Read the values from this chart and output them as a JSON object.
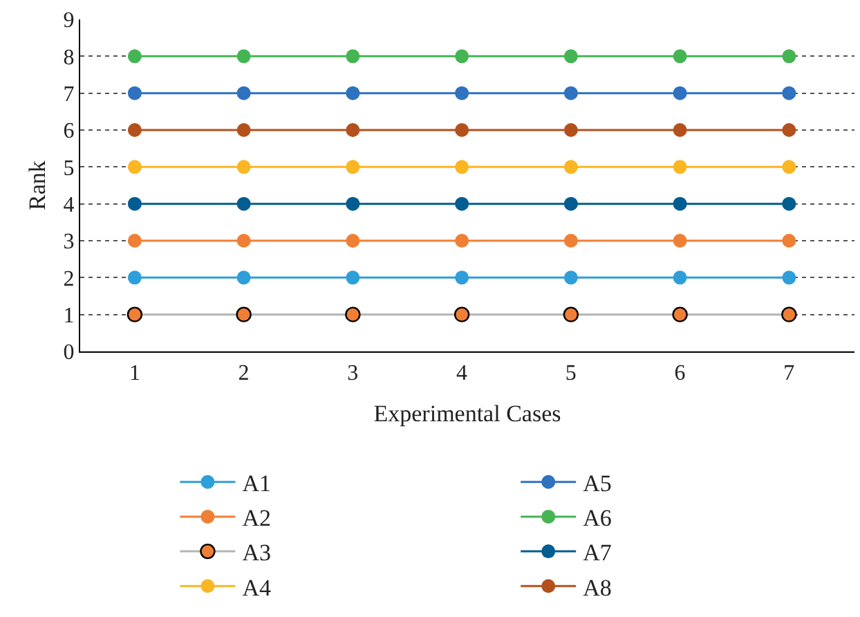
{
  "chart_data": {
    "type": "line",
    "xlabel": "Experimental Cases",
    "ylabel": "Rank",
    "x": [
      1,
      2,
      3,
      4,
      5,
      6,
      7
    ],
    "xlim": [
      0.5,
      7.6
    ],
    "xticks": [
      1,
      2,
      3,
      4,
      5,
      6,
      7
    ],
    "ylim": [
      0,
      9
    ],
    "yticks": [
      0,
      1,
      2,
      3,
      4,
      5,
      6,
      7,
      8,
      9
    ],
    "grid": "y",
    "legend": "bottom",
    "marker": "circle",
    "line_style": "solid",
    "series": [
      {
        "name": "A1",
        "color": "#2e9fd9",
        "values": [
          2,
          2,
          2,
          2,
          2,
          2,
          2
        ]
      },
      {
        "name": "A2",
        "color": "#f07f36",
        "values": [
          3,
          3,
          3,
          3,
          3,
          3,
          3
        ]
      },
      {
        "name": "A3",
        "color": "#b4b4b4",
        "colors": [
          "#f07f36",
          "#f07f36",
          "#f07f36",
          "#f07f36",
          "#f07f36",
          "#f07f36",
          "#f07f36"
        ],
        "values": [
          1,
          1,
          1,
          1,
          1,
          1,
          1
        ]
      },
      {
        "name": "A4",
        "color": "#fbb623",
        "values": [
          5,
          5,
          5,
          5,
          5,
          5,
          5
        ]
      },
      {
        "name": "A5",
        "color": "#2e72c0",
        "values": [
          7,
          7,
          7,
          7,
          7,
          7,
          7
        ]
      },
      {
        "name": "A6",
        "color": "#44b552",
        "values": [
          8,
          8,
          8,
          8,
          8,
          8,
          8
        ]
      },
      {
        "name": "A7",
        "color": "#045d91",
        "values": [
          4,
          4,
          4,
          4,
          4,
          4,
          4
        ]
      },
      {
        "name": "A8",
        "color": "#b4501c",
        "values": [
          6,
          6,
          6,
          6,
          6,
          6,
          6
        ]
      }
    ]
  }
}
